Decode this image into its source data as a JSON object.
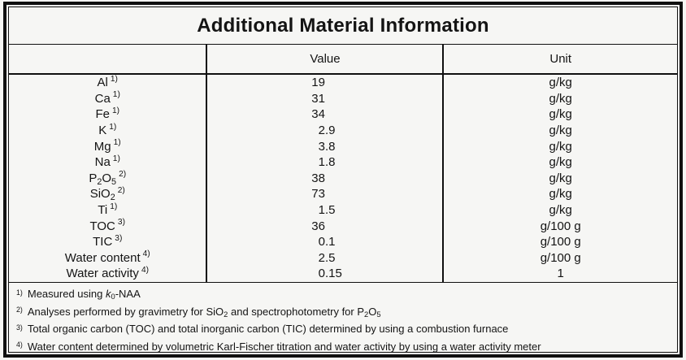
{
  "title": "Additional Material Information",
  "header": {
    "value": "Value",
    "unit": "Unit"
  },
  "rows": [
    {
      "label": [
        {
          "t": "Al"
        }
      ],
      "marker": "1)",
      "value": "19",
      "unit": "g/kg"
    },
    {
      "label": [
        {
          "t": "Ca"
        }
      ],
      "marker": "1)",
      "value": "31",
      "unit": "g/kg"
    },
    {
      "label": [
        {
          "t": "Fe"
        }
      ],
      "marker": "1)",
      "value": "34",
      "unit": "g/kg"
    },
    {
      "label": [
        {
          "t": "K"
        }
      ],
      "marker": "1)",
      "value": "2.9",
      "unit": "g/kg"
    },
    {
      "label": [
        {
          "t": "Mg"
        }
      ],
      "marker": "1)",
      "value": "3.8",
      "unit": "g/kg"
    },
    {
      "label": [
        {
          "t": "Na"
        }
      ],
      "marker": "1)",
      "value": "1.8",
      "unit": "g/kg"
    },
    {
      "label": [
        {
          "t": "P"
        },
        {
          "t": "2",
          "sub": true
        },
        {
          "t": "O"
        },
        {
          "t": "5",
          "sub": true
        }
      ],
      "marker": "2)",
      "value": "38",
      "unit": "g/kg"
    },
    {
      "label": [
        {
          "t": "SiO"
        },
        {
          "t": "2",
          "sub": true
        }
      ],
      "marker": "2)",
      "value": "73",
      "unit": "g/kg"
    },
    {
      "label": [
        {
          "t": "Ti"
        }
      ],
      "marker": "1)",
      "value": "1.5",
      "unit": "g/kg"
    },
    {
      "label": [
        {
          "t": "TOC"
        }
      ],
      "marker": "3)",
      "value": "36",
      "unit": "g/100 g"
    },
    {
      "label": [
        {
          "t": "TIC"
        }
      ],
      "marker": "3)",
      "value": "0.1",
      "unit": "g/100 g"
    },
    {
      "label": [
        {
          "t": "Water content"
        }
      ],
      "marker": "4)",
      "value": "2.5",
      "unit": "g/100 g"
    },
    {
      "label": [
        {
          "t": "Water activity"
        }
      ],
      "marker": "4)",
      "value": "0.15",
      "unit": "1"
    }
  ],
  "footnotes": [
    {
      "marker": "1)",
      "text": [
        {
          "t": "Measured using "
        },
        {
          "t": "k",
          "italic": true
        },
        {
          "t": "0",
          "sub": true
        },
        {
          "t": "-NAA"
        }
      ]
    },
    {
      "marker": "2)",
      "text": [
        {
          "t": "Analyses performed by gravimetry for SiO"
        },
        {
          "t": "2",
          "sub": true
        },
        {
          "t": " and spectrophotometry for P"
        },
        {
          "t": "2",
          "sub": true
        },
        {
          "t": "O"
        },
        {
          "t": "5",
          "sub": true
        }
      ]
    },
    {
      "marker": "3)",
      "text": [
        {
          "t": "Total organic carbon (TOC) and total inorganic carbon (TIC) determined by using a combustion furnace"
        }
      ]
    },
    {
      "marker": "4)",
      "text": [
        {
          "t": "Water content determined by volumetric Karl-Fischer titration and water activity by using a water activity meter"
        }
      ]
    }
  ],
  "colors": {
    "background": "#f6f6f4",
    "border": "#101010",
    "text": "#141414"
  }
}
